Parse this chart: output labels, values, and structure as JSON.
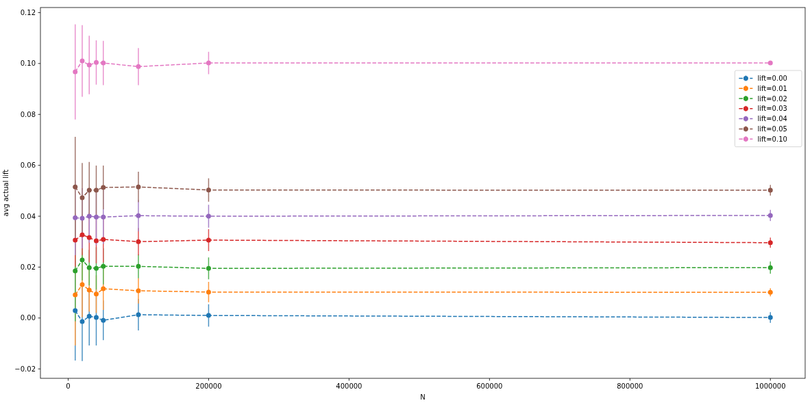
{
  "chart_data": {
    "type": "line",
    "xlabel": "N",
    "ylabel": "avg actual lift",
    "x": [
      10000,
      20000,
      30000,
      40000,
      50000,
      100000,
      200000,
      1000000
    ],
    "xlim": [
      -39500,
      1049500
    ],
    "xticks": [
      0,
      200000,
      400000,
      600000,
      800000,
      1000000
    ],
    "ylim": [
      -0.0237,
      0.122
    ],
    "yticks": [
      {
        "value": -0.02,
        "label": "−0.02"
      },
      {
        "value": 0,
        "label": "0.00"
      },
      {
        "value": 0.02,
        "label": "0.02"
      },
      {
        "value": 0.04,
        "label": "0.04"
      },
      {
        "value": 0.06,
        "label": "0.06"
      },
      {
        "value": 0.08,
        "label": "0.08"
      },
      {
        "value": 0.1,
        "label": "0.10"
      },
      {
        "value": 0.12,
        "label": "0.12"
      }
    ],
    "marker": "circle",
    "line_style": "dashed",
    "legend": "top right",
    "series": [
      {
        "name": "lift=0.00",
        "color": "#1f77b4",
        "values": [
          0.0029,
          -0.0014,
          0.0007,
          0.0002,
          -0.0009,
          0.0013,
          0.001,
          0.0002
        ],
        "errors": [
          0.0196,
          0.0155,
          0.0115,
          0.011,
          0.0078,
          0.0062,
          0.0044,
          0.0021
        ]
      },
      {
        "name": "lift=0.01",
        "color": "#ff7f0e",
        "values": [
          0.0091,
          0.0131,
          0.011,
          0.0094,
          0.0115,
          0.0107,
          0.0102,
          0.0101
        ],
        "errors": [
          0.0199,
          0.0128,
          0.0085,
          0.0074,
          0.0083,
          0.005,
          0.004,
          0.0016
        ]
      },
      {
        "name": "lift=0.02",
        "color": "#2ca02c",
        "values": [
          0.0185,
          0.0228,
          0.0198,
          0.0195,
          0.0203,
          0.0203,
          0.0195,
          0.0198
        ],
        "errors": [
          0.0198,
          0.008,
          0.007,
          0.0083,
          0.0071,
          0.0047,
          0.0043,
          0.0024
        ]
      },
      {
        "name": "lift=0.03",
        "color": "#d62728",
        "values": [
          0.0306,
          0.0327,
          0.0316,
          0.0303,
          0.0309,
          0.03,
          0.0306,
          0.0296
        ],
        "errors": [
          0.0104,
          0.008,
          0.0098,
          0.0088,
          0.0091,
          0.0054,
          0.0043,
          0.002
        ]
      },
      {
        "name": "lift=0.04",
        "color": "#9467bd",
        "values": [
          0.0394,
          0.0392,
          0.04,
          0.0397,
          0.0397,
          0.0402,
          0.04,
          0.0403
        ],
        "errors": [
          0.0147,
          0.0118,
          0.0104,
          0.0111,
          0.0106,
          0.0062,
          0.0045,
          0.0022
        ]
      },
      {
        "name": "lift=0.05",
        "color": "#8c564b",
        "values": [
          0.0515,
          0.0473,
          0.0502,
          0.0502,
          0.0513,
          0.0515,
          0.0503,
          0.0502
        ],
        "errors": [
          0.0197,
          0.0136,
          0.0111,
          0.0097,
          0.0086,
          0.006,
          0.0046,
          0.0021
        ]
      },
      {
        "name": "lift=0.10",
        "color": "#e377c2",
        "values": [
          0.0967,
          0.101,
          0.0994,
          0.1004,
          0.1002,
          0.0988,
          0.1002,
          0.1002
        ],
        "errors": [
          0.0187,
          0.0141,
          0.0115,
          0.0087,
          0.0087,
          0.0073,
          0.0044,
          null
        ]
      }
    ]
  }
}
